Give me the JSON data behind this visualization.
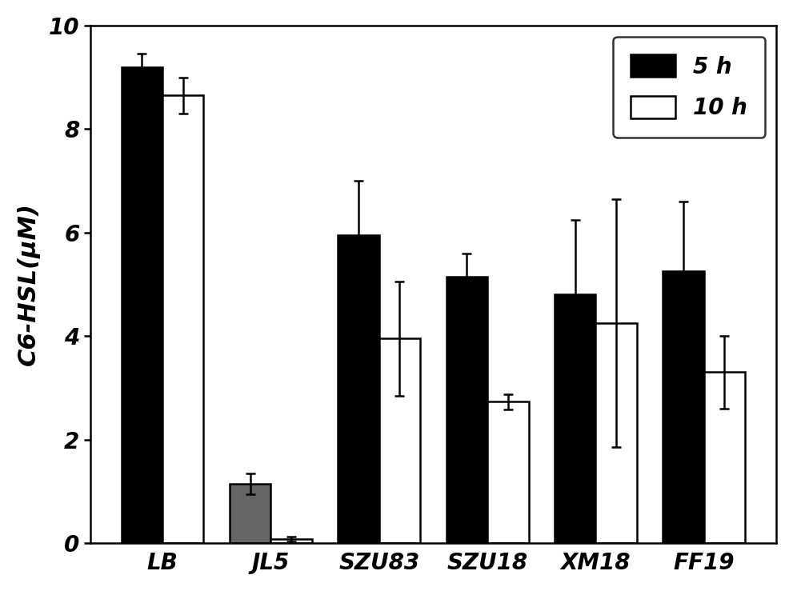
{
  "categories": [
    "LB",
    "JL5",
    "SZU83",
    "SZU18",
    "XM18",
    "FF19"
  ],
  "values_5h": [
    9.2,
    1.15,
    5.95,
    5.15,
    4.8,
    5.25
  ],
  "values_10h": [
    8.65,
    0.08,
    3.95,
    2.73,
    4.25,
    3.3
  ],
  "errors_5h": [
    0.25,
    0.2,
    1.05,
    0.45,
    1.45,
    1.35
  ],
  "errors_10h": [
    0.35,
    0.05,
    1.1,
    0.15,
    2.4,
    0.7
  ],
  "color_5h_default": "#000000",
  "color_5h_jl5": "#666666",
  "color_10h": "#ffffff",
  "bar_edgecolor": "#000000",
  "ylabel": "C6-HSL(μM)",
  "ylim": [
    0,
    10
  ],
  "yticks": [
    0,
    2,
    4,
    6,
    8,
    10
  ],
  "legend_5h": "5 h",
  "legend_10h": "10 h",
  "bar_width": 0.38,
  "figsize": [
    9.91,
    7.39
  ],
  "dpi": 100,
  "capsize": 4,
  "elinewidth": 1.8,
  "bar_linewidth": 1.8,
  "background_color": "#ffffff"
}
